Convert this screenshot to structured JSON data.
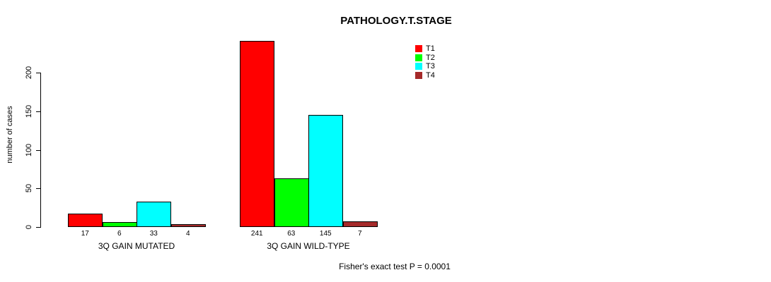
{
  "chart_data": {
    "type": "bar",
    "title": "PATHOLOGY.T.STAGE",
    "ylabel": "number of cases",
    "yticks": [
      0,
      50,
      100,
      150,
      200
    ],
    "ylim": [
      0,
      200
    ],
    "grid": false,
    "legend_position": "top-right",
    "categories": [
      "3Q GAIN MUTATED",
      "3Q GAIN WILD-TYPE"
    ],
    "series": [
      {
        "name": "T1",
        "color": "#FF0000",
        "values": [
          17,
          241
        ]
      },
      {
        "name": "T2",
        "color": "#00FF00",
        "values": [
          6,
          63
        ]
      },
      {
        "name": "T3",
        "color": "#00FFFF",
        "values": [
          33,
          145
        ]
      },
      {
        "name": "T4",
        "color": "#A52A2A",
        "values": [
          4,
          7
        ]
      }
    ],
    "bar_labels": [
      [
        17,
        6,
        33,
        4
      ],
      [
        241,
        63,
        145,
        7
      ]
    ],
    "annotation": "Fisher's exact test P = 0.0001",
    "bar_border_color": "#000000"
  }
}
